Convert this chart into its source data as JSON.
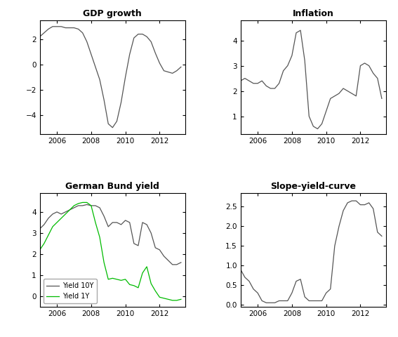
{
  "gdp_x": [
    2005.0,
    2005.25,
    2005.5,
    2005.75,
    2006.0,
    2006.25,
    2006.5,
    2006.75,
    2007.0,
    2007.25,
    2007.5,
    2007.75,
    2008.0,
    2008.25,
    2008.5,
    2008.75,
    2009.0,
    2009.25,
    2009.5,
    2009.75,
    2010.0,
    2010.25,
    2010.5,
    2010.75,
    2011.0,
    2011.25,
    2011.5,
    2011.75,
    2012.0,
    2012.25,
    2012.5,
    2012.75,
    2013.0,
    2013.25
  ],
  "gdp_y": [
    2.2,
    2.5,
    2.8,
    3.0,
    3.0,
    3.0,
    2.9,
    2.9,
    2.9,
    2.8,
    2.5,
    1.8,
    0.8,
    -0.2,
    -1.2,
    -2.8,
    -4.7,
    -5.0,
    -4.5,
    -3.0,
    -1.0,
    0.8,
    2.1,
    2.4,
    2.4,
    2.2,
    1.8,
    0.9,
    0.1,
    -0.5,
    -0.6,
    -0.7,
    -0.5,
    -0.2
  ],
  "infl_x": [
    2005.0,
    2005.25,
    2005.5,
    2005.75,
    2006.0,
    2006.25,
    2006.5,
    2006.75,
    2007.0,
    2007.25,
    2007.5,
    2007.75,
    2008.0,
    2008.25,
    2008.5,
    2008.75,
    2009.0,
    2009.25,
    2009.5,
    2009.75,
    2010.0,
    2010.25,
    2010.5,
    2010.75,
    2011.0,
    2011.25,
    2011.5,
    2011.75,
    2012.0,
    2012.25,
    2012.5,
    2012.75,
    2013.0,
    2013.25
  ],
  "infl_y": [
    2.4,
    2.5,
    2.4,
    2.3,
    2.3,
    2.4,
    2.2,
    2.1,
    2.1,
    2.3,
    2.8,
    3.0,
    3.4,
    4.3,
    4.4,
    3.2,
    1.0,
    0.6,
    0.5,
    0.7,
    1.2,
    1.7,
    1.8,
    1.9,
    2.1,
    2.0,
    1.9,
    1.8,
    3.0,
    3.1,
    3.0,
    2.7,
    2.5,
    1.7
  ],
  "bund10y_x": [
    2005.0,
    2005.25,
    2005.5,
    2005.75,
    2006.0,
    2006.25,
    2006.5,
    2006.75,
    2007.0,
    2007.25,
    2007.5,
    2007.75,
    2008.0,
    2008.25,
    2008.5,
    2008.75,
    2009.0,
    2009.25,
    2009.5,
    2009.75,
    2010.0,
    2010.25,
    2010.5,
    2010.75,
    2011.0,
    2011.25,
    2011.5,
    2011.75,
    2012.0,
    2012.25,
    2012.5,
    2012.75,
    2013.0,
    2013.25
  ],
  "bund10y_y": [
    3.2,
    3.4,
    3.7,
    3.9,
    4.0,
    3.9,
    4.0,
    4.1,
    4.2,
    4.3,
    4.3,
    4.35,
    4.3,
    4.3,
    4.2,
    3.8,
    3.3,
    3.5,
    3.5,
    3.4,
    3.6,
    3.5,
    2.5,
    2.4,
    3.5,
    3.4,
    3.0,
    2.3,
    2.2,
    1.9,
    1.7,
    1.5,
    1.5,
    1.6
  ],
  "bund1y_x": [
    2005.0,
    2005.25,
    2005.5,
    2005.75,
    2006.0,
    2006.25,
    2006.5,
    2006.75,
    2007.0,
    2007.25,
    2007.5,
    2007.75,
    2008.0,
    2008.25,
    2008.5,
    2008.75,
    2009.0,
    2009.25,
    2009.5,
    2009.75,
    2010.0,
    2010.25,
    2010.5,
    2010.75,
    2011.0,
    2011.25,
    2011.5,
    2011.75,
    2012.0,
    2012.25,
    2012.5,
    2012.75,
    2013.0,
    2013.25
  ],
  "bund1y_y": [
    2.2,
    2.5,
    2.9,
    3.3,
    3.5,
    3.7,
    3.9,
    4.1,
    4.3,
    4.4,
    4.45,
    4.45,
    4.3,
    3.5,
    2.8,
    1.6,
    0.8,
    0.85,
    0.8,
    0.75,
    0.8,
    0.55,
    0.5,
    0.4,
    1.1,
    1.4,
    0.6,
    0.25,
    -0.05,
    -0.1,
    -0.15,
    -0.2,
    -0.2,
    -0.15
  ],
  "slope_x": [
    2005.0,
    2005.25,
    2005.5,
    2005.75,
    2006.0,
    2006.25,
    2006.5,
    2006.75,
    2007.0,
    2007.25,
    2007.5,
    2007.75,
    2008.0,
    2008.25,
    2008.5,
    2008.75,
    2009.0,
    2009.25,
    2009.5,
    2009.75,
    2010.0,
    2010.25,
    2010.5,
    2010.75,
    2011.0,
    2011.25,
    2011.5,
    2011.75,
    2012.0,
    2012.25,
    2012.5,
    2012.75,
    2013.0,
    2013.25
  ],
  "slope_y": [
    0.9,
    0.7,
    0.6,
    0.4,
    0.3,
    0.1,
    0.05,
    0.05,
    0.05,
    0.1,
    0.1,
    0.1,
    0.3,
    0.6,
    0.65,
    0.2,
    0.1,
    0.1,
    0.1,
    0.1,
    0.3,
    0.4,
    1.5,
    2.0,
    2.4,
    2.6,
    2.65,
    2.65,
    2.55,
    2.55,
    2.6,
    2.45,
    1.85,
    1.75
  ],
  "line_color": "#555555",
  "green_color": "#00bb00",
  "bg_color": "#ffffff",
  "title_gdp": "GDP growth",
  "title_infl": "Inflation",
  "title_bund": "German Bund yield",
  "title_slope": "Slope-yield-curve",
  "legend_10y": "Yield 10Y",
  "legend_1y": "Yield 1Y",
  "xticks": [
    2006,
    2008,
    2010,
    2012
  ]
}
